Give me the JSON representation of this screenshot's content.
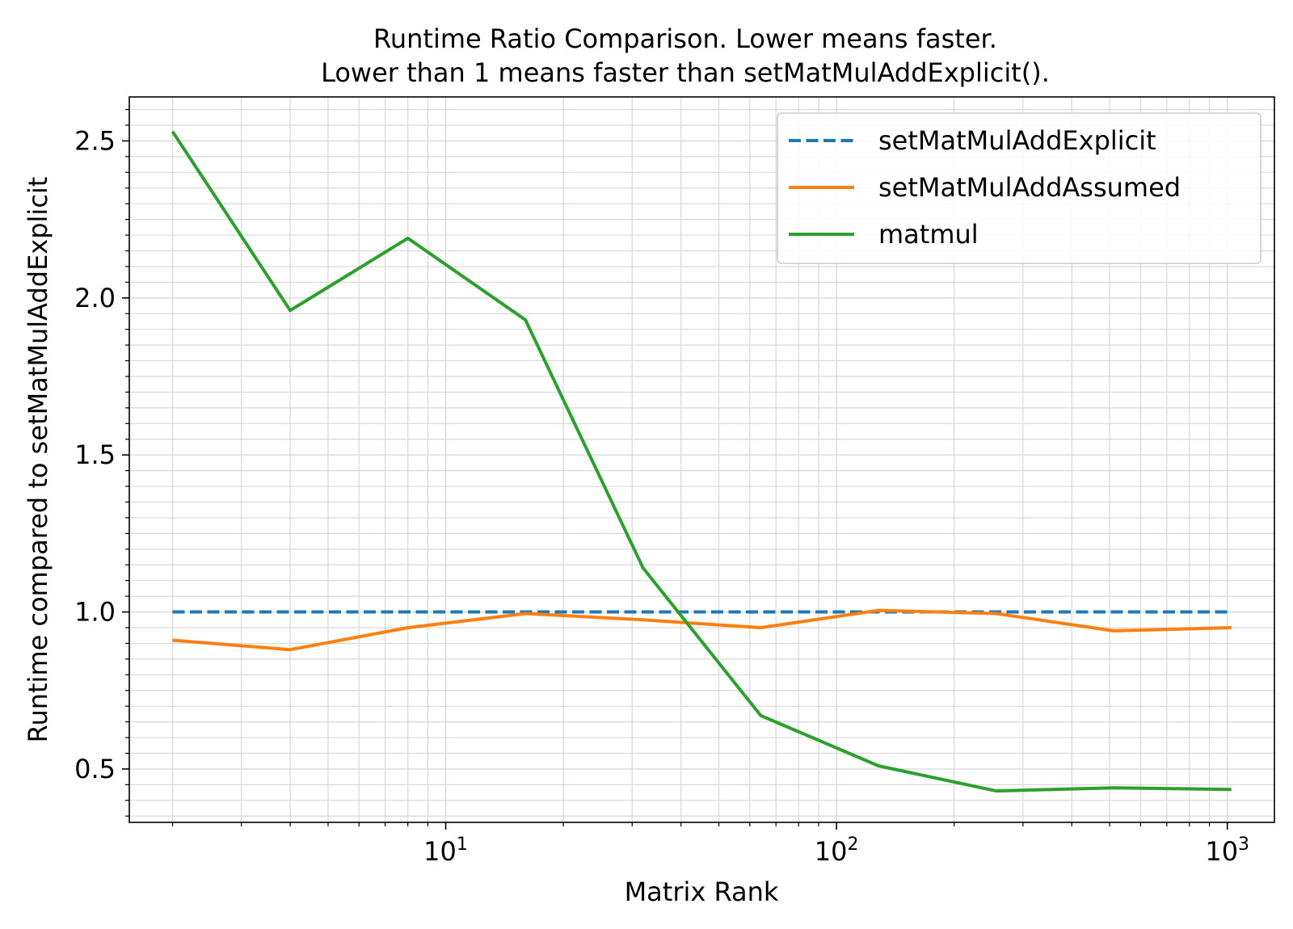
{
  "chart_data": {
    "type": "line",
    "title": "Runtime Ratio Comparison. Lower means faster.",
    "subtitle": "Lower than 1 means faster than setMatMulAddExplicit().",
    "xlabel": "Matrix Rank",
    "ylabel": "Runtime compared to setMatMulAddExplicit",
    "xscale": "log",
    "xlim": [
      1.55,
      1320
    ],
    "ylim": [
      0.33,
      2.64
    ],
    "x_ticks": [
      {
        "value": 10,
        "base": "10",
        "exp": "1"
      },
      {
        "value": 100,
        "base": "10",
        "exp": "2"
      },
      {
        "value": 1000,
        "base": "10",
        "exp": "3"
      }
    ],
    "y_ticks": [
      {
        "value": 0.5,
        "label": "0.5"
      },
      {
        "value": 1.0,
        "label": "1.0"
      },
      {
        "value": 1.5,
        "label": "1.5"
      },
      {
        "value": 2.0,
        "label": "2.0"
      },
      {
        "value": 2.5,
        "label": "2.5"
      }
    ],
    "grid": true,
    "legend_position": "top-right",
    "x": [
      2,
      4,
      8,
      16,
      32,
      64,
      128,
      256,
      512,
      1024
    ],
    "series": [
      {
        "name": "setMatMulAddExplicit",
        "color": "#1f77b4",
        "dash": true,
        "values": [
          1.0,
          1.0,
          1.0,
          1.0,
          1.0,
          1.0,
          1.0,
          1.0,
          1.0,
          1.0
        ]
      },
      {
        "name": "setMatMulAddAssumed",
        "color": "#ff7f0e",
        "dash": false,
        "values": [
          0.91,
          0.88,
          0.95,
          0.995,
          0.975,
          0.95,
          1.005,
          0.995,
          0.94,
          0.95
        ]
      },
      {
        "name": "matmul",
        "color": "#2ca02c",
        "dash": false,
        "values": [
          2.53,
          1.96,
          2.19,
          1.93,
          1.14,
          0.67,
          0.51,
          0.43,
          0.44,
          0.435
        ]
      }
    ]
  }
}
